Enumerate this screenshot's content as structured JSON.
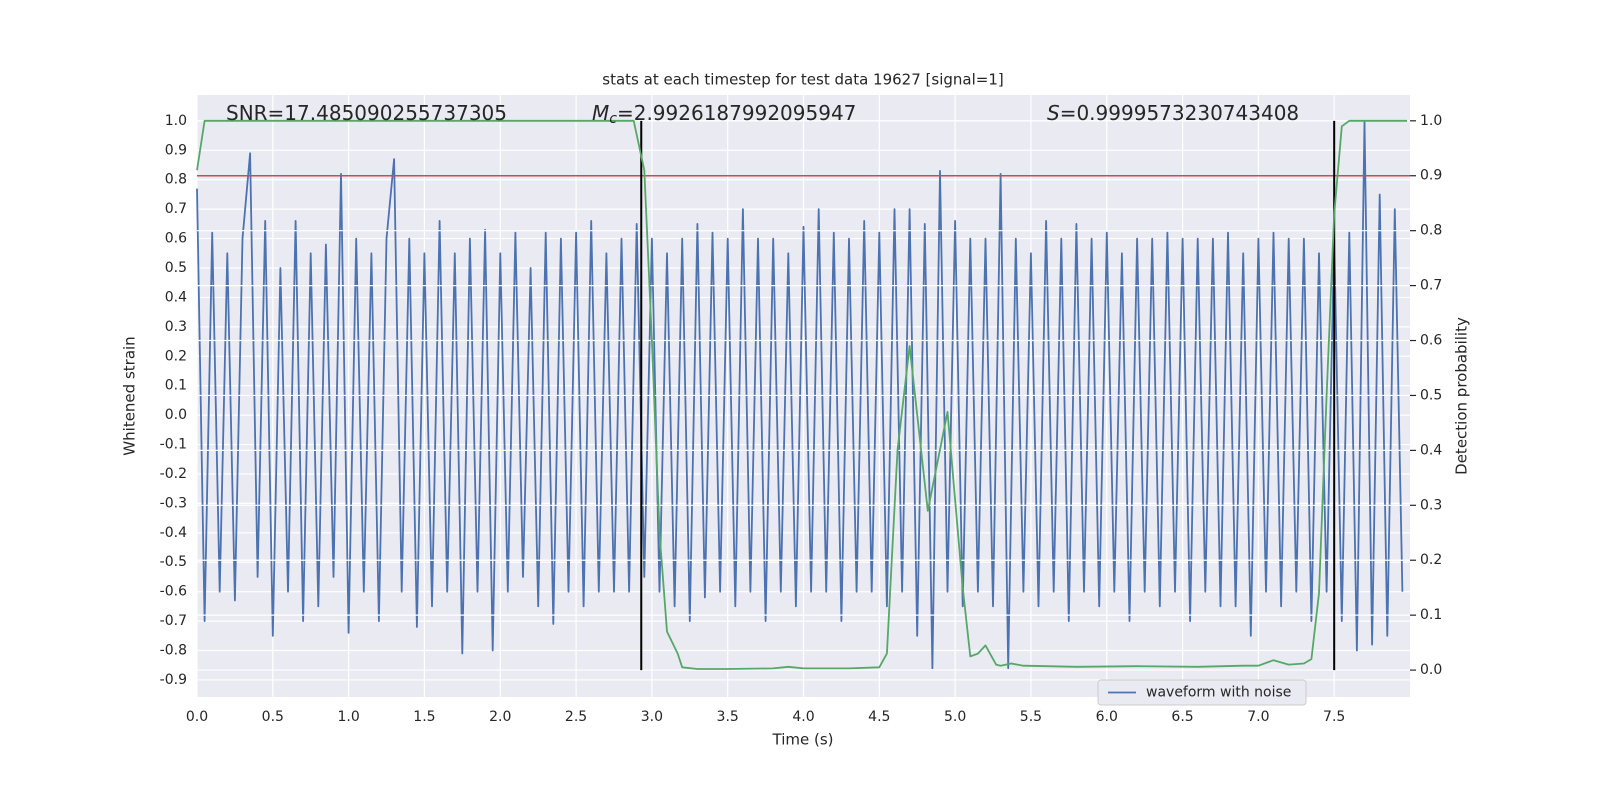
{
  "chart_data": {
    "type": "line",
    "title": "stats at each timestep for test data 19627 [signal=1]",
    "xlabel": "Time (s)",
    "ylabel": "Whitened strain",
    "y2label": "Detection probability",
    "annotations": [
      {
        "text": "SNR=17.485090255737305"
      },
      {
        "symbol": "M",
        "subscript": "c",
        "text": "=2.9926187992095947"
      },
      {
        "symbol": "S",
        "text": "=0.9999573230743408"
      }
    ],
    "xlim": [
      0,
      8
    ],
    "ylim": [
      -0.958,
      1.088
    ],
    "y2lim": [
      -0.049,
      1.047
    ],
    "xticks": [
      {
        "value": 0,
        "label": "0.0"
      },
      0.5,
      {
        "value": 1,
        "label": "1.0"
      },
      1.5,
      {
        "value": 2,
        "label": "2.0"
      },
      2.5,
      {
        "value": 3,
        "label": "3.0"
      },
      3.5,
      {
        "value": 4,
        "label": "4.0"
      },
      4.5,
      {
        "value": 5,
        "label": "5.0"
      },
      5.5,
      {
        "value": 6,
        "label": "6.0"
      },
      6.5,
      {
        "value": 7,
        "label": "7.0"
      },
      7.5
    ],
    "yticks": [
      -0.9,
      -0.8,
      -0.7,
      -0.6,
      -0.5,
      -0.4,
      -0.3,
      -0.2,
      -0.1,
      {
        "value": 0,
        "label": "0.0"
      },
      0.1,
      0.2,
      0.3,
      0.4,
      0.5,
      0.6,
      0.7,
      0.8,
      0.9,
      {
        "value": 1,
        "label": "1.0"
      }
    ],
    "y2ticks": [
      {
        "value": 0,
        "label": "0.0"
      },
      0.1,
      0.2,
      0.3,
      0.4,
      0.5,
      0.6,
      0.7,
      0.8,
      0.9,
      {
        "value": 1,
        "label": "1.0"
      }
    ],
    "grid": true,
    "legend": "lower right",
    "series": [
      {
        "name": "waveform with noise",
        "color": "#4c72b0",
        "x": [
          0,
          0.05,
          0.1,
          0.15,
          0.2,
          0.25,
          0.3,
          0.35,
          0.4,
          0.45,
          0.5,
          0.55,
          0.6,
          0.65,
          0.7,
          0.75,
          0.8,
          0.85,
          0.9,
          0.95,
          1,
          1.05,
          1.1,
          1.15,
          1.2,
          1.25,
          1.3,
          1.35,
          1.4,
          1.45,
          1.5,
          1.55,
          1.6,
          1.65,
          1.7,
          1.75,
          1.8,
          1.85,
          1.9,
          1.95,
          2,
          2.05,
          2.1,
          2.15,
          2.2,
          2.25,
          2.3,
          2.35,
          2.4,
          2.45,
          2.5,
          2.55,
          2.6,
          2.65,
          2.7,
          2.75,
          2.8,
          2.85,
          2.9,
          2.95,
          3,
          3.05,
          3.1,
          3.15,
          3.2,
          3.25,
          3.3,
          3.35,
          3.4,
          3.45,
          3.5,
          3.55,
          3.6,
          3.65,
          3.7,
          3.75,
          3.8,
          3.85,
          3.9,
          3.95,
          4,
          4.05,
          4.1,
          4.15,
          4.2,
          4.25,
          4.3,
          4.35,
          4.4,
          4.45,
          4.5,
          4.55,
          4.6,
          4.65,
          4.7,
          4.75,
          4.8,
          4.85,
          4.9,
          4.95,
          5,
          5.05,
          5.1,
          5.15,
          5.2,
          5.25,
          5.3,
          5.35,
          5.4,
          5.45,
          5.5,
          5.55,
          5.6,
          5.65,
          5.7,
          5.75,
          5.8,
          5.85,
          5.9,
          5.95,
          6,
          6.05,
          6.1,
          6.15,
          6.2,
          6.25,
          6.3,
          6.35,
          6.4,
          6.45,
          6.5,
          6.55,
          6.6,
          6.65,
          6.7,
          6.75,
          6.8,
          6.85,
          6.9,
          6.95,
          7,
          7.05,
          7.1,
          7.15,
          7.2,
          7.25,
          7.3,
          7.35,
          7.4,
          7.45,
          7.5,
          7.55,
          7.6,
          7.65,
          7.7,
          7.75,
          7.8,
          7.85,
          7.9,
          7.95
        ],
        "values": [
          0.77,
          -0.7,
          0.62,
          -0.6,
          0.55,
          -0.63,
          0.6,
          0.89,
          -0.55,
          0.66,
          -0.75,
          0.5,
          -0.6,
          0.66,
          -0.7,
          0.55,
          -0.65,
          0.58,
          -0.55,
          0.82,
          -0.74,
          0.6,
          -0.6,
          0.55,
          -0.7,
          0.6,
          0.87,
          -0.6,
          0.6,
          -0.72,
          0.55,
          -0.65,
          0.66,
          -0.6,
          0.55,
          -0.81,
          0.6,
          -0.6,
          0.63,
          -0.8,
          0.55,
          -0.6,
          0.62,
          -0.55,
          0.5,
          -0.65,
          0.62,
          -0.71,
          0.6,
          -0.6,
          0.62,
          -0.65,
          0.66,
          -0.6,
          0.55,
          -0.6,
          0.6,
          -0.6,
          0.65,
          -0.55,
          0.6,
          -0.6,
          0.55,
          -0.65,
          0.6,
          -0.7,
          0.65,
          -0.62,
          0.62,
          -0.6,
          0.6,
          -0.65,
          0.7,
          -0.6,
          0.6,
          -0.7,
          0.6,
          -0.6,
          0.55,
          -0.65,
          0.64,
          -0.6,
          0.7,
          -0.6,
          0.62,
          -0.7,
          0.6,
          -0.6,
          0.66,
          -0.6,
          0.62,
          -0.65,
          0.7,
          -0.6,
          0.7,
          -0.75,
          0.65,
          -0.86,
          0.83,
          -0.6,
          0.66,
          -0.65,
          0.6,
          -0.6,
          0.6,
          -0.65,
          0.82,
          -0.86,
          0.6,
          -0.6,
          0.55,
          -0.65,
          0.66,
          -0.6,
          0.6,
          -0.7,
          0.65,
          -0.6,
          0.6,
          -0.65,
          0.62,
          -0.6,
          0.55,
          -0.7,
          0.6,
          -0.6,
          0.6,
          -0.65,
          0.62,
          -0.6,
          0.6,
          -0.7,
          0.6,
          -0.6,
          0.6,
          -0.65,
          0.62,
          -0.65,
          0.55,
          -0.75,
          0.6,
          -0.6,
          0.62,
          -0.65,
          0.6,
          -0.6,
          0.6,
          -0.7,
          0.55,
          -0.6,
          0.6,
          -0.7,
          0.62,
          -0.8,
          1.0,
          -0.78,
          0.75,
          -0.75,
          0.7,
          -0.6
        ]
      },
      {
        "color": "#55a868",
        "axis": "y2",
        "x": [
          0,
          0.05,
          0.5,
          1,
          1.5,
          2,
          2.5,
          2.88,
          2.95,
          3,
          3.05,
          3.1,
          3.17,
          3.2,
          3.3,
          3.5,
          3.8,
          3.9,
          4,
          4.3,
          4.5,
          4.55,
          4.62,
          4.7,
          4.82,
          4.95,
          5.05,
          5.1,
          5.15,
          5.2,
          5.27,
          5.3,
          5.37,
          5.45,
          5.8,
          6.2,
          6.6,
          6.9,
          7,
          7.1,
          7.2,
          7.3,
          7.35,
          7.4,
          7.45,
          7.5,
          7.55,
          7.6,
          7.98
        ],
        "values": [
          0.91,
          1,
          1,
          1,
          1,
          1,
          1,
          1,
          0.91,
          0.6,
          0.25,
          0.07,
          0.03,
          0.005,
          0.002,
          0.002,
          0.003,
          0.006,
          0.003,
          0.003,
          0.005,
          0.03,
          0.4,
          0.59,
          0.29,
          0.47,
          0.15,
          0.025,
          0.03,
          0.045,
          0.01,
          0.008,
          0.012,
          0.008,
          0.006,
          0.007,
          0.006,
          0.008,
          0.008,
          0.018,
          0.01,
          0.012,
          0.02,
          0.14,
          0.5,
          0.83,
          0.99,
          1,
          1
        ]
      }
    ],
    "hlines": [
      {
        "value": 0.9,
        "axis": "y2",
        "color": "#c44e52"
      }
    ],
    "vlines": {
      "x": [
        2.93,
        7.5
      ],
      "ymin": 0,
      "ymax": 1,
      "axis": "y2",
      "color": "#000000"
    }
  }
}
